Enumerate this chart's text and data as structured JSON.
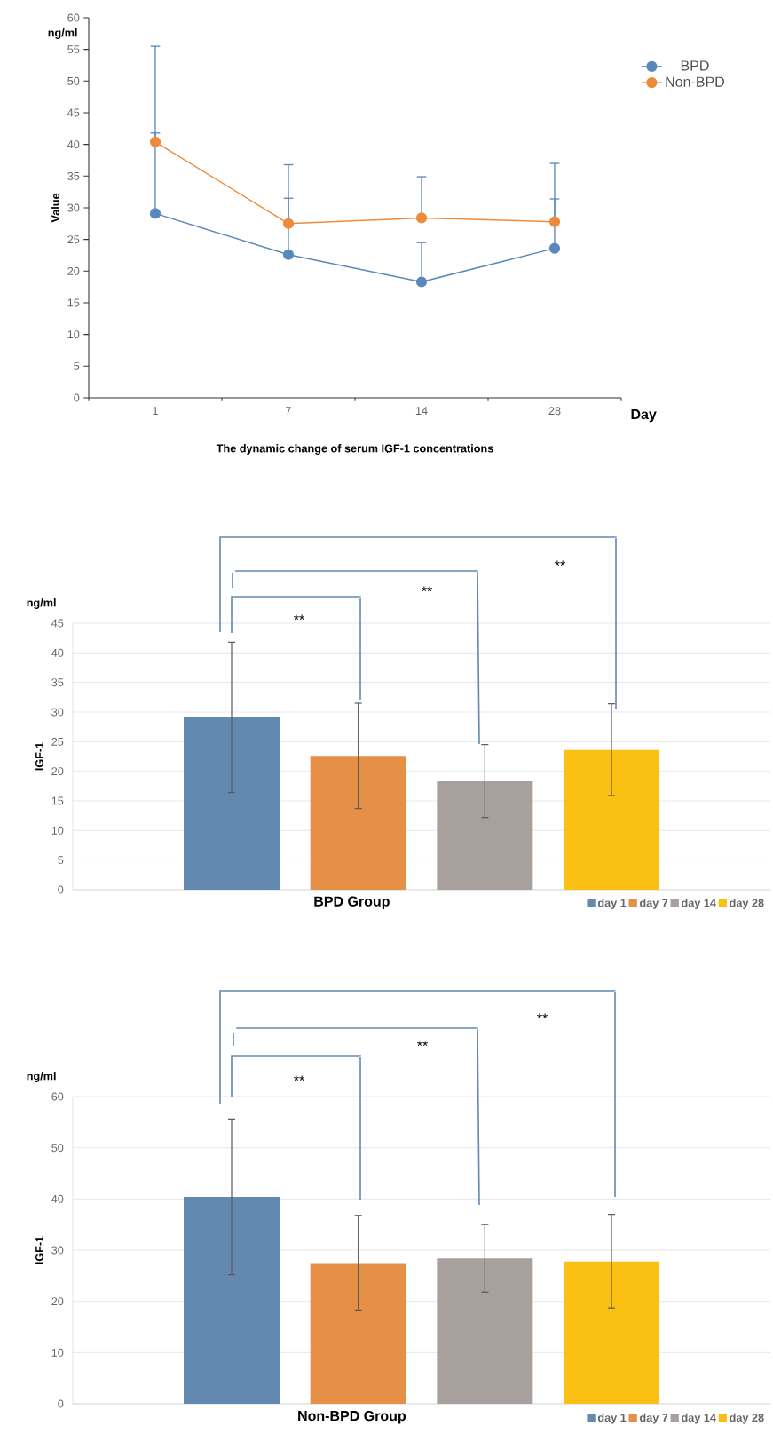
{
  "chart_data": [
    {
      "type": "line",
      "title": "The dynamic change of serum IGF-1 concentrations",
      "xlabel": "Day",
      "ylabel": "Value",
      "categories": [
        "1",
        "7",
        "14",
        "28"
      ],
      "ylim": [
        0,
        60
      ],
      "yticks": [
        0,
        5,
        10,
        15,
        20,
        25,
        30,
        35,
        40,
        45,
        50,
        55,
        60
      ],
      "marker": "circle",
      "legend": "top right",
      "annotations": [
        "ng/ml"
      ],
      "series": [
        {
          "name": "BPD",
          "color": "#5b88bb",
          "values": [
            29.1,
            22.6,
            18.3,
            23.6
          ],
          "errors": [
            [
              29.1,
              41.8
            ],
            [
              22.6,
              31.5
            ],
            [
              18.3,
              24.5
            ],
            [
              23.6,
              31.4
            ]
          ]
        },
        {
          "name": "Non-BPD",
          "color": "#ed8b3a",
          "values": [
            40.4,
            27.5,
            28.4,
            27.8
          ],
          "errors": [
            [
              40.4,
              55.5
            ],
            [
              27.5,
              36.8
            ],
            [
              28.4,
              34.9
            ],
            [
              27.8,
              37.0
            ]
          ]
        }
      ]
    },
    {
      "type": "bar",
      "xlabel": "BPD Group",
      "ylabel": "IGF-1",
      "categories": [
        null
      ],
      "ylim": [
        0,
        45
      ],
      "yticks": [
        0,
        5,
        10,
        15,
        20,
        25,
        30,
        35,
        40,
        45
      ],
      "grid": "y",
      "legend": "bottom right",
      "annotations": [
        "ng/ml",
        "**",
        "**",
        "**"
      ],
      "series": [
        {
          "name": "day 1",
          "color": "#6389b0",
          "values": [
            29.1
          ],
          "errors": [
            [
              16.4,
              41.8
            ]
          ]
        },
        {
          "name": "day 7",
          "color": "#e68f47",
          "values": [
            22.6
          ],
          "errors": [
            [
              13.7,
              31.5
            ]
          ]
        },
        {
          "name": "day 14",
          "color": "#a8a09c",
          "values": [
            18.3
          ],
          "errors": [
            [
              12.2,
              24.5
            ]
          ]
        },
        {
          "name": "day 28",
          "color": "#fbc014",
          "values": [
            23.6
          ],
          "errors": [
            [
              15.9,
              31.4
            ]
          ]
        }
      ]
    },
    {
      "type": "bar",
      "xlabel": "Non-BPD Group",
      "ylabel": "IGF-1",
      "categories": [
        null
      ],
      "ylim": [
        0,
        60
      ],
      "yticks": [
        0,
        10,
        20,
        30,
        40,
        50,
        60
      ],
      "grid": "y",
      "legend": "bottom right",
      "annotations": [
        "ng/ml",
        "**",
        "**",
        "**"
      ],
      "series": [
        {
          "name": "day 1",
          "color": "#6389b0",
          "values": [
            40.4
          ],
          "errors": [
            [
              25.2,
              55.6
            ]
          ]
        },
        {
          "name": "day 7",
          "color": "#e68f47",
          "values": [
            27.5
          ],
          "errors": [
            [
              18.3,
              36.8
            ]
          ]
        },
        {
          "name": "day 14",
          "color": "#a8a09c",
          "values": [
            28.4
          ],
          "errors": [
            [
              21.8,
              35.0
            ]
          ]
        },
        {
          "name": "day 28",
          "color": "#fbc014",
          "values": [
            27.8
          ],
          "errors": [
            [
              18.7,
              37.0
            ]
          ]
        }
      ]
    }
  ]
}
